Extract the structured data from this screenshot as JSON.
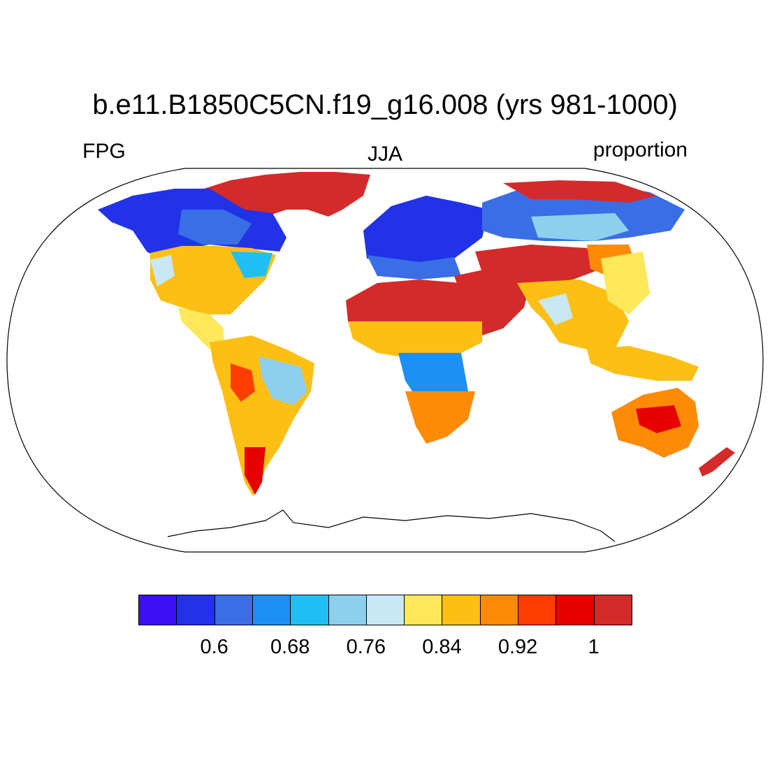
{
  "title": "b.e11.B1850C5CN.f19_g16.008 (yrs 981-1000)",
  "left_label": "FPG",
  "center_label": "JJA",
  "right_label": "proportion",
  "colorbar": {
    "colors": [
      "#3d0ff5",
      "#2132e8",
      "#3a6ee6",
      "#1e8ff5",
      "#1fbff5",
      "#8ecfee",
      "#c9e7f5",
      "#fde85a",
      "#fdbf14",
      "#fd8b05",
      "#fe3e00",
      "#e70000",
      "#d42a2a"
    ],
    "labels": [
      "0.6",
      "0.68",
      "0.76",
      "0.84",
      "0.92",
      "1"
    ]
  },
  "map": {
    "projection": "robinson",
    "variable": "FPG",
    "season": "JJA",
    "units": "proportion",
    "regions": [
      {
        "name": "Greenland",
        "value": 1.0
      },
      {
        "name": "Canada / Alaska",
        "value": 0.6
      },
      {
        "name": "United States",
        "value": 0.84
      },
      {
        "name": "Central America",
        "value": 0.84
      },
      {
        "name": "Amazon",
        "value": 0.84
      },
      {
        "name": "Andes / Patagonia",
        "value": 0.96
      },
      {
        "name": "Europe",
        "value": 0.6
      },
      {
        "name": "Sahara",
        "value": 1.0
      },
      {
        "name": "Sahel / Central Africa",
        "value": 0.84
      },
      {
        "name": "Southern Africa",
        "value": 0.92
      },
      {
        "name": "Middle East",
        "value": 1.0
      },
      {
        "name": "Siberia",
        "value": 0.68
      },
      {
        "name": "Central Asia",
        "value": 1.0
      },
      {
        "name": "India / Southeast Asia",
        "value": 0.84
      },
      {
        "name": "Indonesia",
        "value": 0.88
      },
      {
        "name": "Australia",
        "value": 0.96
      },
      {
        "name": "New Zealand",
        "value": 1.0
      },
      {
        "name": "Antarctica",
        "value": null
      }
    ]
  }
}
